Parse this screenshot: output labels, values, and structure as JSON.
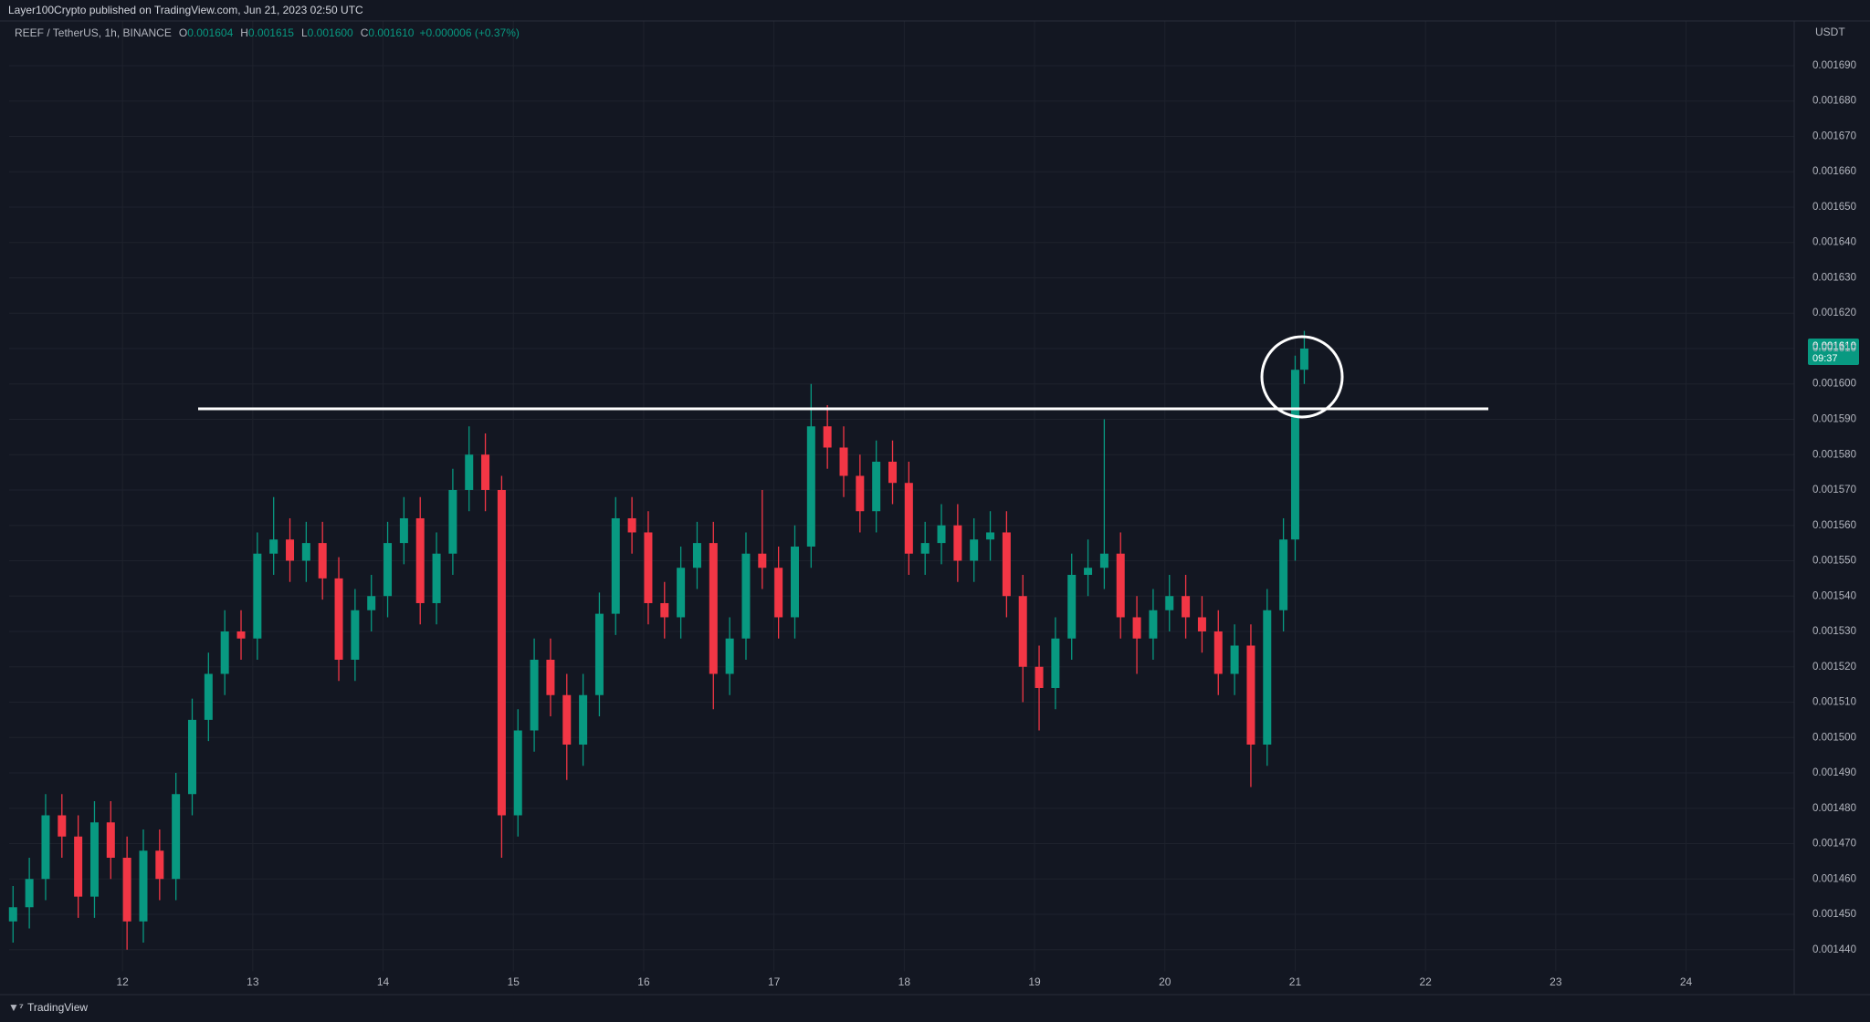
{
  "header": "Layer100Crypto published on TradingView.com, Jun 21, 2023 02:50 UTC",
  "footer_brand": "TradingView",
  "chart_data": {
    "type": "candlestick",
    "legend": {
      "symbol": "REEF / TetherUS, 1h, BINANCE",
      "ohlc": [
        {
          "label": "O",
          "value": "0.001604"
        },
        {
          "label": "H",
          "value": "0.001615"
        },
        {
          "label": "L",
          "value": "0.001600"
        },
        {
          "label": "C",
          "value": "0.001610"
        }
      ],
      "change": "+0.000006 (+0.37%)"
    },
    "currency": "USDT",
    "last_price_label": "0.001610",
    "countdown": "09:37",
    "up_color": "#089981",
    "down_color": "#f23645",
    "grid": true,
    "x": [
      11.16,
      11.285,
      11.41,
      11.535,
      11.66,
      11.785,
      11.91,
      12.035,
      12.16,
      12.285,
      12.41,
      12.535,
      12.66,
      12.785,
      12.91,
      13.035,
      13.16,
      13.285,
      13.41,
      13.535,
      13.66,
      13.785,
      13.91,
      14.035,
      14.16,
      14.285,
      14.41,
      14.535,
      14.66,
      14.785,
      14.91,
      15.035,
      15.16,
      15.285,
      15.41,
      15.535,
      15.66,
      15.785,
      15.91,
      16.035,
      16.16,
      16.285,
      16.41,
      16.535,
      16.66,
      16.785,
      16.91,
      17.035,
      17.16,
      17.285,
      17.41,
      17.535,
      17.66,
      17.785,
      17.91,
      18.035,
      18.16,
      18.285,
      18.41,
      18.535,
      18.66,
      18.785,
      18.91,
      19.035,
      19.16,
      19.285,
      19.41,
      19.535,
      19.66,
      19.785,
      19.91,
      20.035,
      20.16,
      20.285,
      20.41,
      20.535,
      20.66,
      20.785,
      20.91,
      21.0,
      21.07
    ],
    "open": [
      0.001448,
      0.001452,
      0.00146,
      0.001478,
      0.001472,
      0.001455,
      0.001476,
      0.001466,
      0.001448,
      0.001468,
      0.00146,
      0.001484,
      0.001505,
      0.001518,
      0.00153,
      0.001528,
      0.001552,
      0.001556,
      0.00155,
      0.001555,
      0.001545,
      0.001522,
      0.001536,
      0.00154,
      0.001555,
      0.001562,
      0.001538,
      0.001552,
      0.00157,
      0.00158,
      0.00157,
      0.001478,
      0.001502,
      0.001522,
      0.001512,
      0.001498,
      0.001512,
      0.001535,
      0.001562,
      0.001558,
      0.001538,
      0.001534,
      0.001548,
      0.001555,
      0.001518,
      0.001528,
      0.001552,
      0.001548,
      0.001534,
      0.001554,
      0.001588,
      0.001582,
      0.001574,
      0.001564,
      0.001578,
      0.001572,
      0.001552,
      0.001555,
      0.00156,
      0.00155,
      0.001556,
      0.001558,
      0.00154,
      0.00152,
      0.001514,
      0.001528,
      0.001546,
      0.001548,
      0.001552,
      0.001534,
      0.001528,
      0.001536,
      0.00154,
      0.001534,
      0.00153,
      0.001518,
      0.001526,
      0.001498,
      0.001536,
      0.001556,
      0.001604
    ],
    "high": [
      0.001458,
      0.001466,
      0.001484,
      0.001484,
      0.001478,
      0.001482,
      0.001482,
      0.001472,
      0.001474,
      0.001474,
      0.00149,
      0.001511,
      0.001524,
      0.001536,
      0.001536,
      0.001558,
      0.001568,
      0.001562,
      0.001561,
      0.001561,
      0.001551,
      0.001542,
      0.001546,
      0.001561,
      0.001568,
      0.001568,
      0.001558,
      0.001576,
      0.001588,
      0.001586,
      0.001574,
      0.001508,
      0.001528,
      0.001528,
      0.001518,
      0.001518,
      0.001541,
      0.001568,
      0.001568,
      0.001564,
      0.001544,
      0.001554,
      0.001561,
      0.001561,
      0.001534,
      0.001558,
      0.00157,
      0.001554,
      0.00156,
      0.0016,
      0.001594,
      0.001588,
      0.00158,
      0.001584,
      0.001584,
      0.001578,
      0.001561,
      0.001566,
      0.001566,
      0.001562,
      0.001564,
      0.001564,
      0.001546,
      0.001526,
      0.001534,
      0.001552,
      0.001556,
      0.00159,
      0.001558,
      0.00154,
      0.001542,
      0.001546,
      0.001546,
      0.00154,
      0.001536,
      0.001532,
      0.001532,
      0.001542,
      0.001562,
      0.001608,
      0.001615
    ],
    "low": [
      0.001442,
      0.001446,
      0.001454,
      0.001466,
      0.001449,
      0.001449,
      0.00146,
      0.00144,
      0.001442,
      0.001454,
      0.001454,
      0.001478,
      0.001499,
      0.001512,
      0.001522,
      0.001522,
      0.001546,
      0.001544,
      0.001544,
      0.001539,
      0.001516,
      0.001516,
      0.00153,
      0.001534,
      0.001549,
      0.001532,
      0.001532,
      0.001546,
      0.001564,
      0.001564,
      0.001466,
      0.001472,
      0.001496,
      0.001506,
      0.001488,
      0.001492,
      0.001506,
      0.001529,
      0.001552,
      0.001532,
      0.001528,
      0.001528,
      0.001542,
      0.001508,
      0.001512,
      0.001522,
      0.001542,
      0.001528,
      0.001528,
      0.001548,
      0.001576,
      0.001568,
      0.001558,
      0.001558,
      0.001566,
      0.001546,
      0.001546,
      0.001549,
      0.001544,
      0.001544,
      0.00155,
      0.001534,
      0.00151,
      0.001502,
      0.001508,
      0.001522,
      0.00154,
      0.001542,
      0.001528,
      0.001518,
      0.001522,
      0.00153,
      0.001528,
      0.001524,
      0.001512,
      0.001512,
      0.001486,
      0.001492,
      0.00153,
      0.00155,
      0.0016
    ],
    "close": [
      0.001452,
      0.00146,
      0.001478,
      0.001472,
      0.001455,
      0.001476,
      0.001466,
      0.001448,
      0.001468,
      0.00146,
      0.001484,
      0.001505,
      0.001518,
      0.00153,
      0.001528,
      0.001552,
      0.001556,
      0.00155,
      0.001555,
      0.001545,
      0.001522,
      0.001536,
      0.00154,
      0.001555,
      0.001562,
      0.001538,
      0.001552,
      0.00157,
      0.00158,
      0.00157,
      0.001478,
      0.001502,
      0.001522,
      0.001512,
      0.001498,
      0.001512,
      0.001535,
      0.001562,
      0.001558,
      0.001538,
      0.001534,
      0.001548,
      0.001555,
      0.001518,
      0.001528,
      0.001552,
      0.001548,
      0.001534,
      0.001554,
      0.001588,
      0.001582,
      0.001574,
      0.001564,
      0.001578,
      0.001572,
      0.001552,
      0.001555,
      0.00156,
      0.00155,
      0.001556,
      0.001558,
      0.00154,
      0.00152,
      0.001514,
      0.001528,
      0.001546,
      0.001548,
      0.001552,
      0.001534,
      0.001528,
      0.001536,
      0.00154,
      0.001534,
      0.00153,
      0.001518,
      0.001526,
      0.001498,
      0.001536,
      0.001556,
      0.001604,
      0.00161
    ],
    "xlim": [
      11.13,
      24.83
    ],
    "xticks": [
      12,
      13,
      14,
      15,
      16,
      17,
      18,
      19,
      20,
      21,
      22,
      23,
      24
    ],
    "ylim": [
      0.0014339,
      0.0017025
    ],
    "yticks": [
      {
        "value": 0.00144,
        "label": "0.001440"
      },
      {
        "value": 0.00145,
        "label": "0.001450"
      },
      {
        "value": 0.00146,
        "label": "0.001460"
      },
      {
        "value": 0.00147,
        "label": "0.001470"
      },
      {
        "value": 0.00148,
        "label": "0.001480"
      },
      {
        "value": 0.00149,
        "label": "0.001490"
      },
      {
        "value": 0.0015,
        "label": "0.001500"
      },
      {
        "value": 0.00151,
        "label": "0.001510"
      },
      {
        "value": 0.00152,
        "label": "0.001520"
      },
      {
        "value": 0.00153,
        "label": "0.001530"
      },
      {
        "value": 0.00154,
        "label": "0.001540"
      },
      {
        "value": 0.00155,
        "label": "0.001550"
      },
      {
        "value": 0.00156,
        "label": "0.001560"
      },
      {
        "value": 0.00157,
        "label": "0.001570"
      },
      {
        "value": 0.00158,
        "label": "0.001580"
      },
      {
        "value": 0.00159,
        "label": "0.001590"
      },
      {
        "value": 0.0016,
        "label": "0.001600"
      },
      {
        "value": 0.00161,
        "label": "0.001610"
      },
      {
        "value": 0.00162,
        "label": "0.001620"
      },
      {
        "value": 0.00163,
        "label": "0.001630"
      },
      {
        "value": 0.00164,
        "label": "0.001640"
      },
      {
        "value": 0.00165,
        "label": "0.001650"
      },
      {
        "value": 0.00166,
        "label": "0.001660"
      },
      {
        "value": 0.00167,
        "label": "0.001670"
      },
      {
        "value": 0.00168,
        "label": "0.001680"
      },
      {
        "value": 0.00169,
        "label": "0.001690"
      }
    ]
  }
}
